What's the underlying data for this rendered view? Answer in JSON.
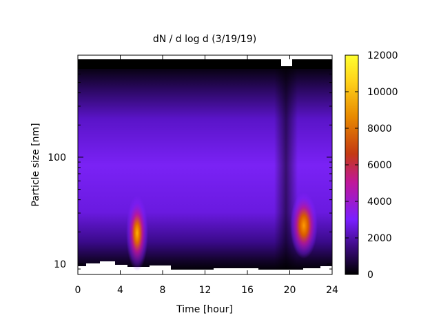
{
  "chart_data": {
    "type": "heatmap",
    "title": "dN / d log d (3/19/19)",
    "xlabel": "Time [hour]",
    "ylabel": "Particle size [nm]",
    "xlim": [
      0,
      24
    ],
    "ylim": [
      8,
      900
    ],
    "y_scale": "log",
    "x_ticks": [
      "0",
      "4",
      "8",
      "12",
      "16",
      "20",
      "24"
    ],
    "y_ticks": [
      "10",
      "100"
    ],
    "colorbar": {
      "range": [
        0,
        12000
      ],
      "ticks": [
        "0",
        "2000",
        "4000",
        "6000",
        "8000",
        "10000",
        "12000"
      ],
      "colormap": [
        "#000000",
        "#3a0a7a",
        "#7a1fff",
        "#c0179a",
        "#c43a12",
        "#e88a00",
        "#ffd21a",
        "#ffff30"
      ]
    },
    "features": [
      {
        "t": 5.6,
        "d_nm": 19,
        "value": 11000
      },
      {
        "t": 21.3,
        "d_nm": 25,
        "value": 10000
      }
    ]
  }
}
